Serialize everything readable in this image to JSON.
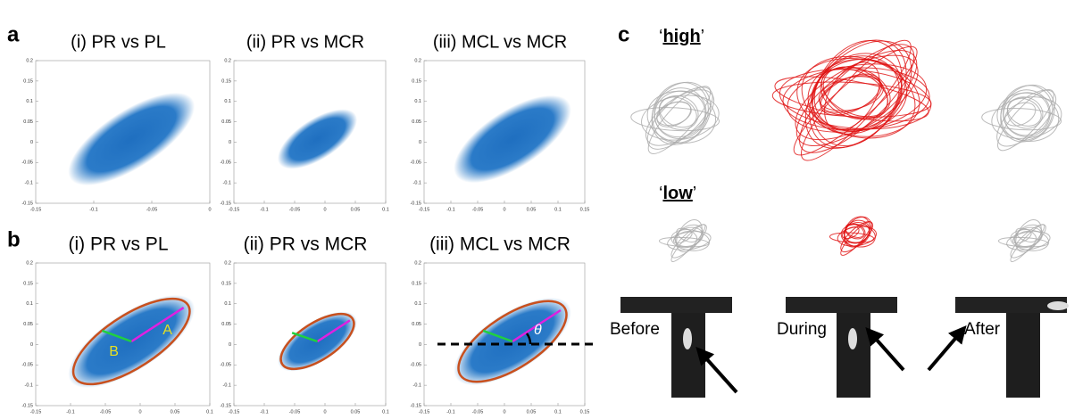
{
  "panels": [
    {
      "label": "a",
      "plots": [
        {
          "title": "(i)  PR  vs PL",
          "xlim": [
            -0.15,
            0
          ],
          "xticks": [
            -0.15,
            -0.1,
            -0.05,
            0
          ],
          "ylim": [
            -0.15,
            0.2
          ],
          "yticks": [
            -0.15,
            -0.1,
            -0.05,
            0,
            0.05,
            0.1,
            0.15,
            0.2
          ]
        },
        {
          "title": "(ii)  PR vs MCR",
          "xlim": [
            -0.15,
            0.1
          ],
          "xticks": [
            -0.15,
            -0.1,
            -0.05,
            0,
            0.05,
            0.1
          ],
          "ylim": [
            -0.15,
            0.2
          ],
          "yticks": [
            -0.15,
            -0.1,
            -0.05,
            0,
            0.05,
            0.1,
            0.15,
            0.2
          ]
        },
        {
          "title": "(iii)  MCL vs MCR",
          "xlim": [
            -0.15,
            0.15
          ],
          "xticks": [
            -0.15,
            -0.1,
            -0.05,
            0,
            0.05,
            0.1,
            0.15
          ],
          "ylim": [
            -0.15,
            0.2
          ],
          "yticks": [
            -0.15,
            -0.1,
            -0.05,
            0,
            0.05,
            0.1,
            0.15,
            0.2
          ]
        }
      ]
    },
    {
      "label": "b",
      "plots": [
        {
          "title": "(i)  PR vs PL",
          "xlim": [
            -0.15,
            0.1
          ],
          "xticks": [
            -0.15,
            -0.1,
            -0.05,
            0,
            0.05,
            0.1
          ],
          "ylim": [
            -0.15,
            0.2
          ],
          "yticks": [
            -0.15,
            -0.1,
            -0.05,
            0,
            0.05,
            0.1,
            0.15,
            0.2
          ],
          "annotations": [
            "A",
            "B"
          ]
        },
        {
          "title": "(ii)  PR vs MCR",
          "xlim": [
            -0.15,
            0.1
          ],
          "xticks": [
            -0.15,
            -0.1,
            -0.05,
            0,
            0.05,
            0.1
          ],
          "ylim": [
            -0.15,
            0.2
          ],
          "yticks": [
            -0.15,
            -0.1,
            -0.05,
            0,
            0.05,
            0.1,
            0.15,
            0.2
          ],
          "annotations": []
        },
        {
          "title": "(iii)  MCL vs MCR",
          "xlim": [
            -0.15,
            0.15
          ],
          "xticks": [
            -0.15,
            -0.1,
            -0.05,
            0,
            0.05,
            0.1,
            0.15
          ],
          "ylim": [
            -0.15,
            0.2
          ],
          "yticks": [
            -0.15,
            -0.1,
            -0.05,
            0,
            0.05,
            0.1,
            0.15,
            0.2
          ],
          "annotations": [
            "θ"
          ]
        }
      ]
    },
    {
      "label": "c",
      "high": "high",
      "low": "low",
      "phases": [
        "Before",
        "During",
        "After"
      ]
    }
  ]
}
